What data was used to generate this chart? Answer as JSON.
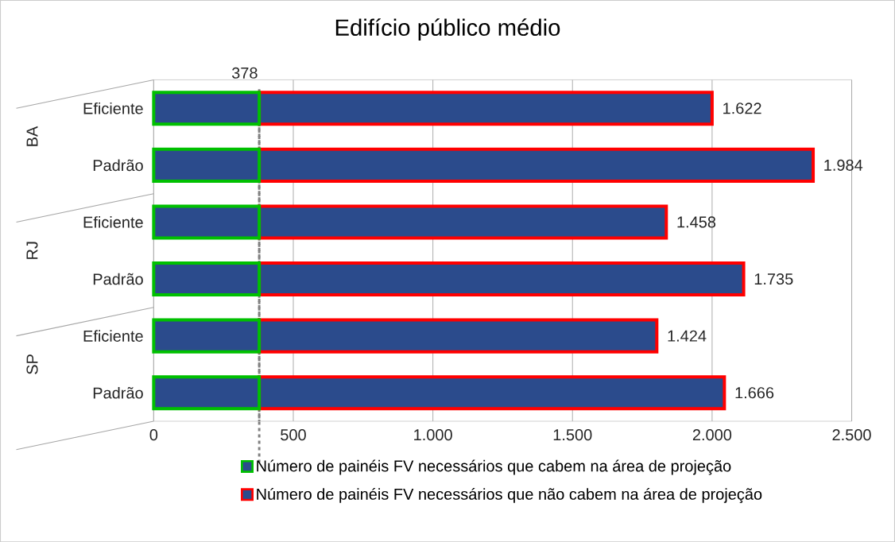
{
  "chart_data": {
    "type": "bar",
    "orientation": "horizontal",
    "stacked": true,
    "title": "Edifício público médio",
    "categories": [
      "Eficiente",
      "Padrão",
      "Eficiente",
      "Padrão",
      "Eficiente",
      "Padrão"
    ],
    "series": [
      {
        "name": "Número de painéis FV necessários que cabem na área de projeção",
        "color": "#00c000",
        "values": [
          378,
          378,
          378,
          378,
          378,
          378
        ]
      },
      {
        "name": "Número de painéis FV necessários que não cabem na área de projeção",
        "color": "#ff0000",
        "values": [
          1622,
          1984,
          1458,
          1735,
          1424,
          1666
        ],
        "value_labels": [
          "1.622",
          "1.984",
          "1.458",
          "1.735",
          "1.424",
          "1.666"
        ]
      }
    ],
    "xlim": [
      0,
      2500
    ],
    "xticks": [
      0,
      500,
      {
        "value": 1000,
        "label": "1.000"
      },
      {
        "value": 1500,
        "label": "1.500"
      },
      {
        "value": 2000,
        "label": "2.000"
      },
      {
        "value": 2500,
        "label": "2.500"
      }
    ],
    "ref_lines": [
      {
        "axis": "x",
        "value": 378,
        "label": "378",
        "color": "#808080",
        "line_style": "dashed"
      }
    ],
    "annotations": [
      "BA",
      "RJ",
      "SP"
    ],
    "grid": "x",
    "legend": "bottom"
  }
}
